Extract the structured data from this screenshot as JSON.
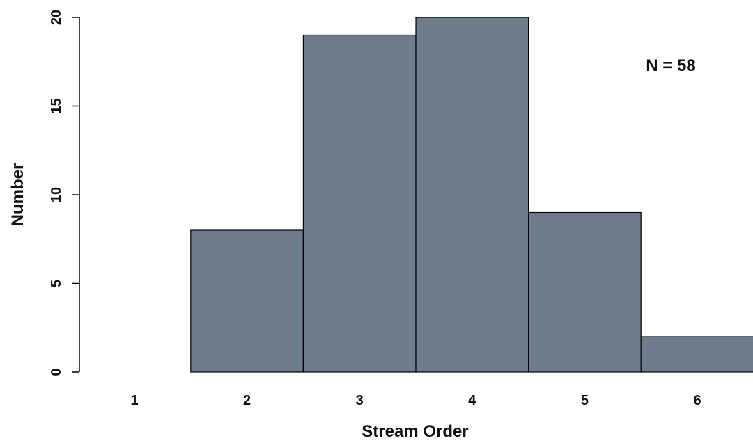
{
  "chart_data": {
    "type": "bar",
    "categories": [
      "1",
      "2",
      "3",
      "4",
      "5",
      "6"
    ],
    "values": [
      0,
      8,
      19,
      20,
      9,
      2
    ],
    "title": "",
    "xlabel": "Stream Order",
    "ylabel": "Number",
    "ylim": [
      0,
      20
    ],
    "yticks": [
      "0",
      "5",
      "10",
      "15",
      "20"
    ],
    "bar_color": "#6e7c8c",
    "grid": false,
    "annotation": "N = 58"
  }
}
